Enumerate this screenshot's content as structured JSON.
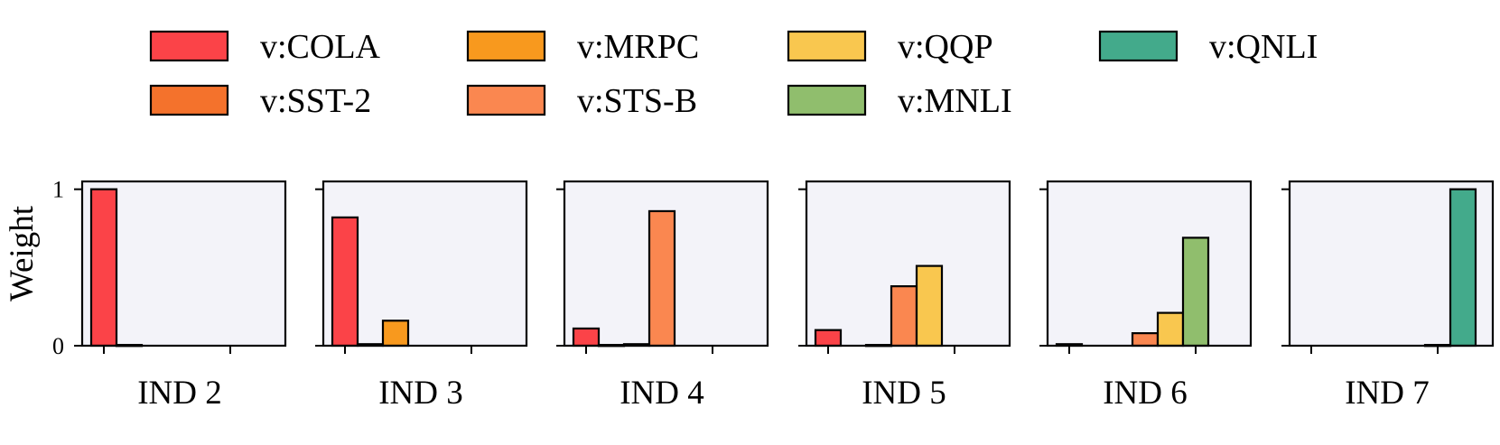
{
  "chart_data": {
    "type": "bar",
    "ylabel": "Weight",
    "ylim": [
      0,
      1.05
    ],
    "yticks": [
      "0",
      "1"
    ],
    "series": [
      {
        "name": "v:COLA",
        "color": "#FB4348"
      },
      {
        "name": "v:SST-2",
        "color": "#F4722C"
      },
      {
        "name": "v:MRPC",
        "color": "#F8991E"
      },
      {
        "name": "v:STS-B",
        "color": "#FA8750"
      },
      {
        "name": "v:QQP",
        "color": "#F9C74F"
      },
      {
        "name": "v:MNLI",
        "color": "#90BE6D"
      },
      {
        "name": "v:QNLI",
        "color": "#43AA8B"
      }
    ],
    "panels": [
      {
        "label": "IND 2",
        "values": [
          1.0,
          0.005,
          0,
          0,
          0,
          0,
          0
        ]
      },
      {
        "label": "IND 3",
        "values": [
          0.82,
          0.01,
          0.16,
          0,
          0,
          0,
          0
        ]
      },
      {
        "label": "IND 4",
        "values": [
          0.11,
          0.005,
          0.01,
          0.86,
          0,
          0,
          0
        ]
      },
      {
        "label": "IND 5",
        "values": [
          0.1,
          0,
          0.005,
          0.38,
          0.51,
          0,
          0
        ]
      },
      {
        "label": "IND 6",
        "values": [
          0.01,
          0,
          0,
          0.08,
          0.21,
          0.69,
          0
        ]
      },
      {
        "label": "IND 7",
        "values": [
          0,
          0,
          0,
          0,
          0,
          0.005,
          1.0
        ]
      }
    ],
    "legend_position": "top"
  }
}
